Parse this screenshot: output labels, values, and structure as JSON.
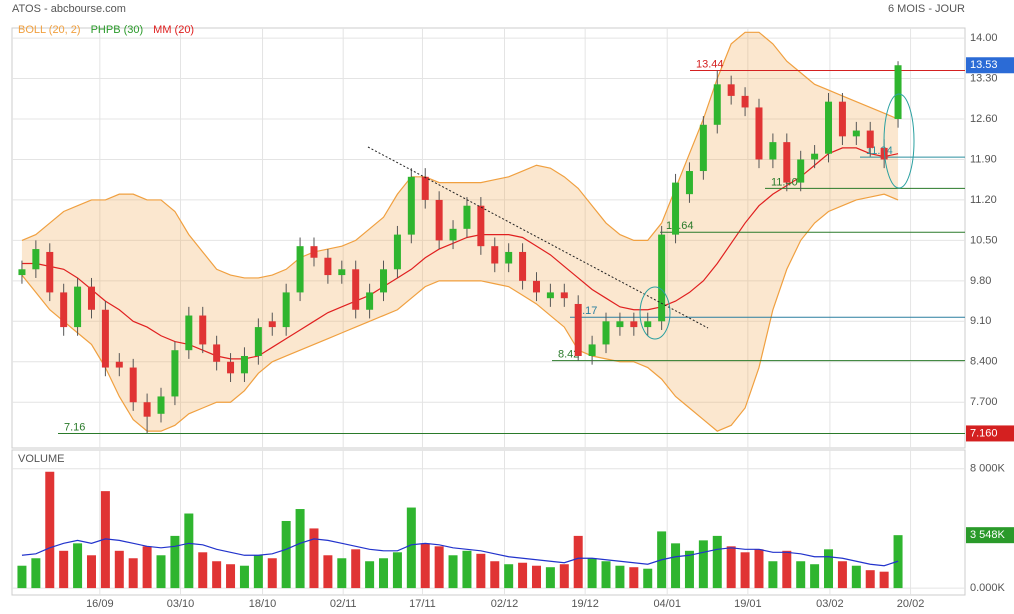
{
  "header": {
    "title": "ATOS - abcbourse.com",
    "period": "6 MOIS - JOUR"
  },
  "chart_data": [
    {
      "type": "candlestick",
      "indicators": [
        {
          "name": "BOLL (20, 2)",
          "color": "#f0a040"
        },
        {
          "name": "PHPB (30)",
          "color": "#2a9a2a"
        },
        {
          "name": "MM (20)",
          "color": "#e02020"
        }
      ],
      "xlim": [
        -0.5,
        63.5
      ],
      "xticks": [
        {
          "value": 5.6,
          "label": "16/09"
        },
        {
          "value": 11.4,
          "label": "03/10"
        },
        {
          "value": 17.3,
          "label": "18/10"
        },
        {
          "value": 23.1,
          "label": "02/11"
        },
        {
          "value": 28.8,
          "label": "17/11"
        },
        {
          "value": 34.7,
          "label": "02/12"
        },
        {
          "value": 40.5,
          "label": "19/12"
        },
        {
          "value": 46.4,
          "label": "04/01"
        },
        {
          "value": 52.2,
          "label": "19/01"
        },
        {
          "value": 58.1,
          "label": "03/02"
        },
        {
          "value": 63.9,
          "label": "20/02"
        }
      ],
      "ylim": [
        6.96,
        14.14
      ],
      "yticks": [
        {
          "value": 14,
          "label": "14.00"
        },
        {
          "value": 13.3,
          "label": "13.30"
        },
        {
          "value": 12.6,
          "label": "12.60"
        },
        {
          "value": 11.9,
          "label": "11.90"
        },
        {
          "value": 11.2,
          "label": "11.20"
        },
        {
          "value": 10.5,
          "label": "10.50"
        },
        {
          "value": 9.8,
          "label": "9.80"
        },
        {
          "value": 9.1,
          "label": "9.10"
        },
        {
          "value": 8.4,
          "label": "8.400"
        },
        {
          "value": 7.7,
          "label": "7.700"
        }
      ],
      "up_color": "#2fb52f",
      "down_color": "#e03434",
      "open": [
        9.9,
        10.0,
        10.3,
        9.6,
        9.0,
        9.7,
        9.3,
        8.4,
        8.3,
        7.7,
        7.5,
        7.8,
        8.6,
        9.2,
        8.7,
        8.4,
        8.2,
        8.5,
        9.1,
        9.0,
        9.6,
        10.4,
        10.2,
        9.9,
        10.0,
        9.3,
        9.6,
        10.0,
        10.6,
        11.6,
        11.2,
        10.5,
        10.7,
        11.1,
        10.4,
        10.1,
        10.3,
        9.8,
        9.5,
        9.6,
        9.4,
        8.5,
        8.7,
        9.0,
        9.1,
        9.0,
        9.1,
        10.6,
        11.3,
        11.7,
        12.5,
        13.2,
        13.0,
        12.8,
        11.9,
        12.2,
        11.5,
        11.9,
        12.0,
        12.9,
        12.3,
        12.4,
        12.1,
        12.6
      ],
      "high": [
        10.15,
        10.5,
        10.45,
        9.75,
        9.85,
        9.85,
        9.45,
        8.55,
        8.45,
        7.85,
        7.95,
        8.75,
        9.35,
        9.35,
        8.85,
        8.55,
        8.65,
        9.15,
        9.25,
        9.75,
        10.55,
        10.55,
        10.35,
        10.15,
        10.15,
        9.75,
        10.15,
        10.75,
        11.75,
        11.75,
        11.35,
        10.85,
        11.25,
        11.25,
        10.55,
        10.45,
        10.45,
        9.95,
        9.75,
        9.75,
        9.55,
        8.85,
        9.25,
        9.25,
        9.25,
        9.25,
        10.75,
        11.65,
        11.85,
        12.65,
        13.44,
        13.35,
        13.15,
        12.95,
        12.35,
        12.35,
        12.05,
        12.15,
        13.05,
        13.05,
        12.55,
        12.55,
        12.25,
        13.6
      ],
      "low": [
        9.75,
        9.85,
        9.45,
        8.85,
        8.85,
        9.15,
        8.15,
        8.15,
        7.55,
        7.16,
        7.35,
        7.65,
        8.45,
        8.55,
        8.25,
        8.05,
        8.05,
        8.35,
        8.85,
        8.85,
        9.45,
        10.05,
        9.75,
        9.75,
        9.15,
        9.15,
        9.45,
        9.85,
        10.45,
        11.05,
        10.35,
        10.35,
        10.55,
        10.25,
        9.95,
        9.95,
        9.65,
        9.45,
        9.35,
        9.35,
        8.42,
        8.35,
        8.55,
        8.85,
        8.85,
        8.85,
        8.95,
        10.45,
        11.15,
        11.55,
        12.35,
        12.85,
        12.65,
        11.75,
        11.75,
        11.35,
        11.35,
        11.75,
        11.85,
        12.15,
        12.15,
        11.95,
        11.75,
        12.45
      ],
      "close": [
        10.0,
        10.35,
        9.6,
        9.0,
        9.7,
        9.3,
        8.3,
        8.3,
        7.7,
        7.45,
        7.8,
        8.6,
        9.2,
        8.7,
        8.4,
        8.2,
        8.5,
        9.0,
        9.0,
        9.6,
        10.4,
        10.2,
        9.9,
        10.0,
        9.3,
        9.6,
        10.0,
        10.6,
        11.6,
        11.2,
        10.5,
        10.7,
        11.1,
        10.4,
        10.1,
        10.3,
        9.8,
        9.6,
        9.6,
        9.5,
        8.5,
        8.7,
        9.1,
        9.1,
        9.0,
        9.1,
        10.6,
        11.5,
        11.7,
        12.5,
        13.2,
        13.0,
        12.8,
        11.9,
        12.2,
        11.5,
        11.9,
        12.0,
        12.9,
        12.3,
        12.4,
        12.1,
        11.9,
        13.53
      ],
      "boll_upper": [
        10.5,
        10.6,
        10.8,
        11.0,
        11.1,
        11.2,
        11.2,
        11.3,
        11.3,
        11.2,
        11.2,
        11.0,
        10.6,
        10.3,
        10.0,
        9.9,
        9.85,
        9.85,
        9.9,
        10.0,
        10.2,
        10.3,
        10.35,
        10.4,
        10.5,
        10.7,
        10.9,
        11.3,
        11.6,
        11.6,
        11.5,
        11.5,
        11.5,
        11.5,
        11.55,
        11.6,
        11.7,
        11.8,
        11.75,
        11.6,
        11.4,
        11.1,
        10.8,
        10.6,
        10.5,
        10.5,
        10.8,
        11.4,
        12.0,
        12.6,
        13.3,
        13.9,
        14.1,
        14.1,
        13.9,
        13.6,
        13.4,
        13.2,
        13.1,
        13.0,
        12.9,
        12.8,
        12.7,
        12.6
      ],
      "boll_lower": [
        9.9,
        9.6,
        9.3,
        9.1,
        8.9,
        8.7,
        8.3,
        7.8,
        7.4,
        7.2,
        7.2,
        7.3,
        7.5,
        7.6,
        7.7,
        7.7,
        7.9,
        8.2,
        8.4,
        8.5,
        8.6,
        8.7,
        8.8,
        8.9,
        9.0,
        9.1,
        9.2,
        9.3,
        9.5,
        9.7,
        9.8,
        9.8,
        9.8,
        9.8,
        9.75,
        9.7,
        9.55,
        9.4,
        9.2,
        9.0,
        8.6,
        8.5,
        8.45,
        8.4,
        8.4,
        8.3,
        8.1,
        7.8,
        7.6,
        7.4,
        7.2,
        7.3,
        7.6,
        8.3,
        9.3,
        10.0,
        10.5,
        10.8,
        11.0,
        11.1,
        11.2,
        11.25,
        11.3,
        11.2
      ],
      "ma": [
        10.1,
        10.1,
        10.05,
        10.0,
        9.85,
        9.65,
        9.45,
        9.3,
        9.1,
        9.0,
        8.85,
        8.75,
        8.7,
        8.6,
        8.5,
        8.45,
        8.45,
        8.5,
        8.65,
        8.8,
        8.95,
        9.1,
        9.25,
        9.35,
        9.45,
        9.55,
        9.7,
        9.85,
        10.0,
        10.2,
        10.35,
        10.45,
        10.55,
        10.6,
        10.6,
        10.6,
        10.55,
        10.4,
        10.25,
        10.05,
        9.85,
        9.65,
        9.5,
        9.35,
        9.3,
        9.3,
        9.35,
        9.45,
        9.6,
        9.8,
        10.1,
        10.45,
        10.8,
        11.1,
        11.3,
        11.45,
        11.6,
        11.8,
        12.0,
        12.1,
        12.1,
        12.0,
        11.95,
        12.0
      ],
      "levels": [
        {
          "value": 13.44,
          "color": "#d42020"
        },
        {
          "value": 11.94,
          "color": "#2a8f9f"
        },
        {
          "value": 11.4,
          "label": "11.40",
          "color": "#2a7a2a"
        },
        {
          "value": 10.64,
          "color": "#2a7a2a"
        },
        {
          "value": 9.17,
          "color": "#2a7f9f"
        },
        {
          "value": 8.42,
          "color": "#2a7a2a"
        },
        {
          "value": 7.16,
          "color": "#2a7a2a"
        }
      ],
      "axis_boxes": [
        {
          "value": 13.53,
          "label": "13.53",
          "color": "#2b6bd6"
        },
        {
          "value": 7.16,
          "label": "7.160",
          "color": "#d42020"
        }
      ]
    },
    {
      "type": "bar",
      "title": "VOLUME",
      "ylim": [
        -463,
        9124
      ],
      "yticks": [
        {
          "value": 8000,
          "label": "8 000K"
        },
        {
          "value": 0,
          "label": "0.000K"
        }
      ],
      "values": [
        1500,
        2000,
        7800,
        2500,
        3000,
        2200,
        6500,
        2500,
        2000,
        2800,
        2200,
        3500,
        5000,
        2400,
        1800,
        1600,
        1500,
        2200,
        2000,
        4500,
        5300,
        4000,
        2200,
        2000,
        2600,
        1800,
        2000,
        2400,
        5400,
        3000,
        2800,
        2200,
        2500,
        2300,
        1800,
        1600,
        1700,
        1500,
        1400,
        1600,
        3500,
        2000,
        1800,
        1500,
        1400,
        1300,
        3800,
        3000,
        2500,
        3200,
        3500,
        2800,
        2400,
        2600,
        1800,
        2500,
        1800,
        1600,
        2600,
        1800,
        1500,
        1200,
        1100,
        3548
      ],
      "ma_color": "#2233cc",
      "ma": [
        2200,
        2300,
        2700,
        3000,
        3200,
        3000,
        3300,
        3200,
        3000,
        2800,
        2700,
        2800,
        3000,
        2900,
        2600,
        2400,
        2200,
        2200,
        2300,
        2600,
        3000,
        3300,
        3200,
        3000,
        2800,
        2600,
        2500,
        2500,
        2900,
        3000,
        2900,
        2700,
        2600,
        2500,
        2300,
        2100,
        2000,
        1900,
        1800,
        1700,
        2000,
        2000,
        1900,
        1800,
        1700,
        1600,
        1900,
        2100,
        2200,
        2400,
        2600,
        2700,
        2600,
        2600,
        2400,
        2400,
        2300,
        2100,
        2100,
        2000,
        1800,
        1600,
        1500,
        1800
      ],
      "axis_boxes": [
        {
          "value": 3548,
          "label": "3 548K",
          "color": "#2a9a2a"
        }
      ]
    }
  ]
}
